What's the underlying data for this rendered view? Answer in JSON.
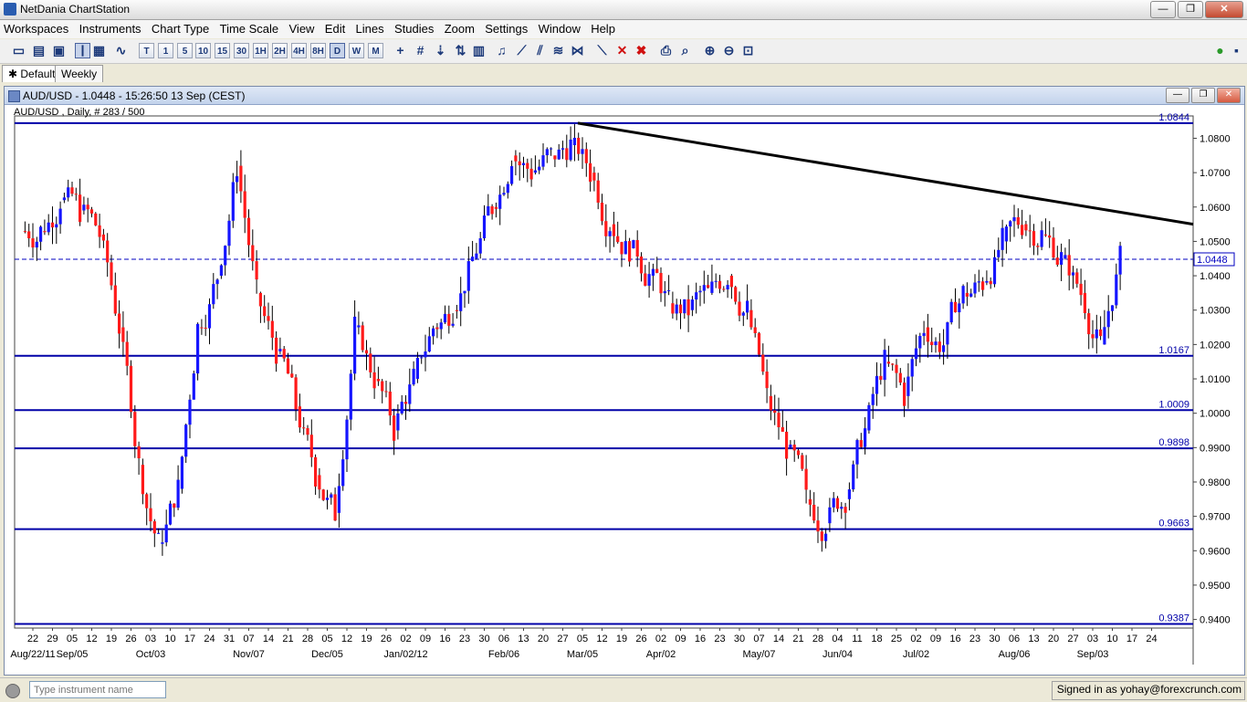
{
  "window": {
    "title": "NetDania ChartStation",
    "buttons": [
      "—",
      "❐",
      "✕"
    ]
  },
  "menu": [
    "Workspaces",
    "Instruments",
    "Chart Type",
    "Time Scale",
    "View",
    "Edit",
    "Lines",
    "Studies",
    "Zoom",
    "Settings",
    "Window",
    "Help"
  ],
  "toolbar": {
    "timeframes": [
      "T",
      "1",
      "5",
      "10",
      "15",
      "30",
      "1H",
      "2H",
      "4H",
      "8H",
      "D",
      "W",
      "M"
    ],
    "active_timeframe": "D"
  },
  "tabs": [
    "Default",
    "Weekly"
  ],
  "chart_window": {
    "title": "AUD/USD - 1.0448 - 15:26:50  13 Sep (CEST)",
    "subtitle": "AUD/USD , Daily, # 283 / 500"
  },
  "chart_data": {
    "type": "candlestick",
    "symbol": "AUD/USD",
    "last_price": 1.0448,
    "ylim": [
      0.9375,
      1.0865
    ],
    "y_ticks": [
      0.94,
      0.95,
      0.96,
      0.97,
      0.98,
      0.99,
      1.0,
      1.01,
      1.02,
      1.03,
      1.04,
      1.05,
      1.06,
      1.07,
      1.08
    ],
    "y_tick_labels": [
      "0.9400",
      "0.9500",
      "0.9600",
      "0.9700",
      "0.9800",
      "0.9900",
      "1.0000",
      "1.0100",
      "1.0200",
      "1.0300",
      "1.0400",
      "1.0500",
      "1.0600",
      "1.0700",
      "1.0800"
    ],
    "horizontal_lines": [
      {
        "value": 1.0844,
        "label": "1.0844"
      },
      {
        "value": 1.0167,
        "label": "1.0167"
      },
      {
        "value": 1.0009,
        "label": "1.0009"
      },
      {
        "value": 0.9898,
        "label": "0.9898"
      },
      {
        "value": 0.9663,
        "label": "0.9663"
      },
      {
        "value": 0.9387,
        "label": "0.9387"
      }
    ],
    "trendline": {
      "from": {
        "x": "Mar/02/12",
        "y": 1.0844
      },
      "to": {
        "x": "Sep/17/12",
        "y": 1.055
      }
    },
    "x_day_labels": [
      "22",
      "29",
      "05",
      "12",
      "19",
      "26",
      "03",
      "10",
      "17",
      "24",
      "31",
      "07",
      "14",
      "21",
      "28",
      "05",
      "12",
      "19",
      "26",
      "02",
      "09",
      "16",
      "23",
      "30",
      "06",
      "13",
      "20",
      "27",
      "05",
      "12",
      "19",
      "26",
      "02",
      "09",
      "16",
      "23",
      "30",
      "07",
      "14",
      "21",
      "28",
      "04",
      "11",
      "18",
      "25",
      "02",
      "09",
      "16",
      "23",
      "30",
      "06",
      "13",
      "20",
      "27",
      "03",
      "10",
      "17",
      "24"
    ],
    "x_period_labels": [
      {
        "week": 0,
        "text": "Aug/22/11"
      },
      {
        "week": 2,
        "text": "Sep/05"
      },
      {
        "week": 6,
        "text": "Oct/03"
      },
      {
        "week": 11,
        "text": "Nov/07"
      },
      {
        "week": 15,
        "text": "Dec/05"
      },
      {
        "week": 19,
        "text": "Jan/02/12"
      },
      {
        "week": 24,
        "text": "Feb/06"
      },
      {
        "week": 28,
        "text": "Mar/05"
      },
      {
        "week": 32,
        "text": "Apr/02"
      },
      {
        "week": 37,
        "text": "May/07"
      },
      {
        "week": 41,
        "text": "Jun/04"
      },
      {
        "week": 45,
        "text": "Jul/02"
      },
      {
        "week": 50,
        "text": "Aug/06"
      },
      {
        "week": 54,
        "text": "Sep/03"
      }
    ],
    "weekly_closes": [
      1.053,
      1.062,
      1.059,
      1.052,
      1.025,
      0.985,
      0.962,
      0.978,
      1.025,
      1.04,
      1.072,
      1.035,
      1.018,
      1.002,
      0.982,
      0.971,
      1.025,
      1.01,
      0.995,
      1.01,
      1.025,
      1.03,
      1.045,
      1.06,
      1.075,
      1.07,
      1.075,
      1.078,
      1.07,
      1.055,
      1.048,
      1.04,
      1.032,
      1.03,
      1.035,
      1.04,
      1.03,
      1.005,
      0.99,
      0.975,
      0.968,
      0.975,
      0.995,
      1.015,
      1.005,
      1.025,
      1.02,
      1.035,
      1.038,
      1.05,
      1.055,
      1.052,
      1.045,
      1.035,
      1.02,
      1.045
    ]
  },
  "status": {
    "search_placeholder": "Type instrument name",
    "signed_in": "Signed in as yohay@forexcrunch.com"
  }
}
